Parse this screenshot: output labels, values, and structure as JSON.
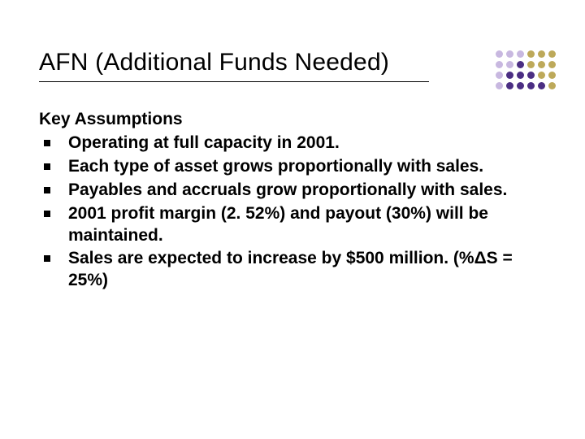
{
  "title": "AFN (Additional Funds Needed)",
  "subheading": "Key Assumptions",
  "bullets": [
    "Operating at full capacity in 2001.",
    "Each type of asset grows proportionally with sales.",
    "Payables and accruals grow proportionally with sales.",
    "2001 profit margin (2. 52%) and payout (30%) will be maintained.",
    "Sales are expected to increase by $500 million. (%ΔS = 25%)"
  ],
  "decor": {
    "dot_colors": [
      [
        "#c8b8e0",
        "#c8b8e0",
        "#c8b8e0",
        "#bda95a",
        "#bda95a",
        "#bda95a"
      ],
      [
        "#c8b8e0",
        "#c8b8e0",
        "#4b2e83",
        "#bda95a",
        "#bda95a",
        "#bda95a"
      ],
      [
        "#c8b8e0",
        "#4b2e83",
        "#4b2e83",
        "#4b2e83",
        "#bda95a",
        "#bda95a"
      ],
      [
        "#c8b8e0",
        "#4b2e83",
        "#4b2e83",
        "#4b2e83",
        "#4b2e83",
        "#bda95a"
      ]
    ]
  },
  "colors": {
    "text": "#000000",
    "background": "#ffffff"
  }
}
